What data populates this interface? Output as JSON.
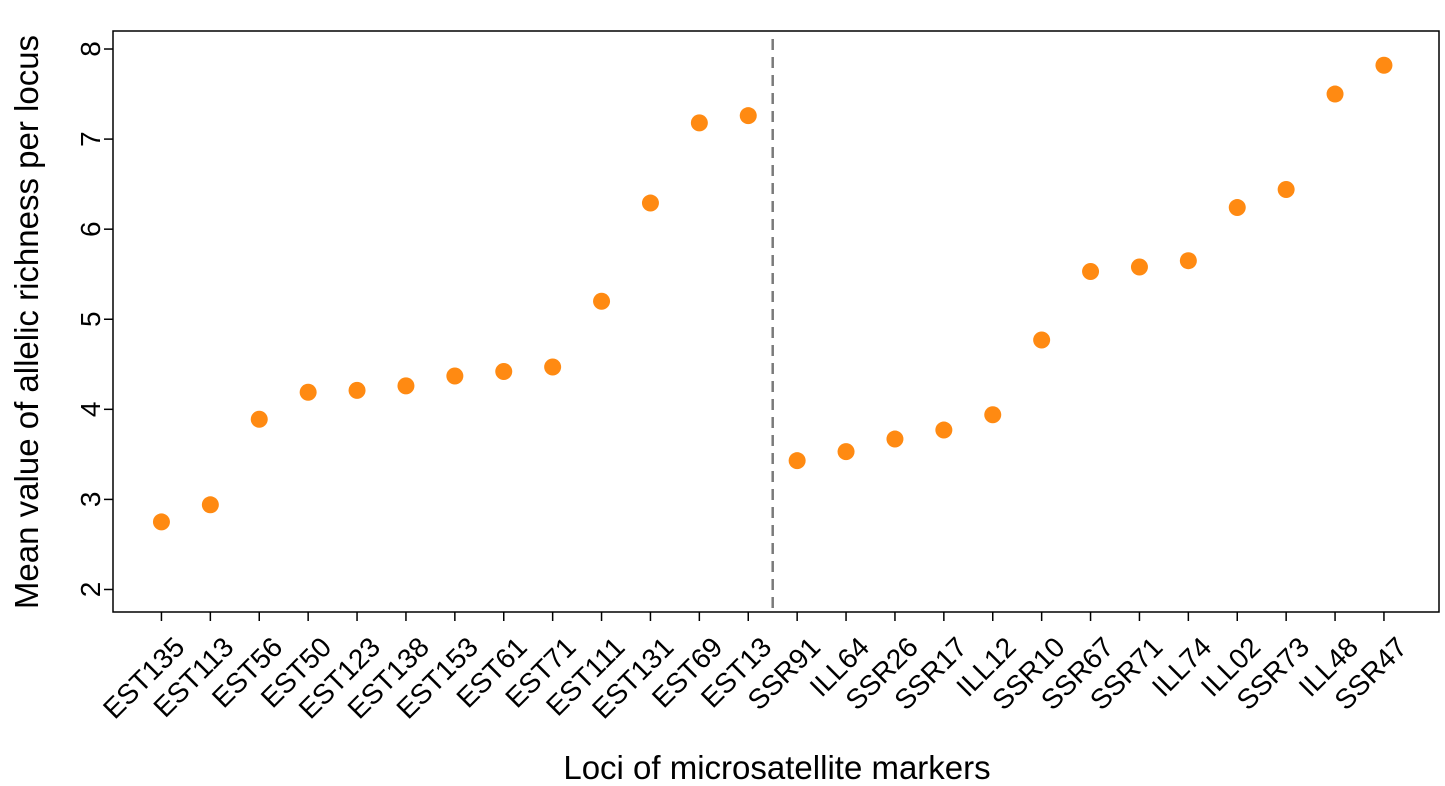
{
  "chart_data": {
    "type": "scatter",
    "xlabel": "Loci of microsatellite markers",
    "ylabel": "Mean value of allelic richness per locus",
    "categories": [
      "EST135",
      "EST113",
      "EST56",
      "EST50",
      "EST123",
      "EST138",
      "EST153",
      "EST61",
      "EST71",
      "EST111",
      "EST131",
      "EST69",
      "EST13",
      "SSR91",
      "ILL64",
      "SSR26",
      "SSR17",
      "ILL12",
      "SSR10",
      "SSR67",
      "SSR71",
      "ILL74",
      "ILL02",
      "SSR73",
      "ILL48",
      "SSR47"
    ],
    "values": [
      2.75,
      2.94,
      3.89,
      4.19,
      4.21,
      4.26,
      4.37,
      4.42,
      4.47,
      5.2,
      6.29,
      7.18,
      7.26,
      3.43,
      3.53,
      3.67,
      3.77,
      3.94,
      4.77,
      5.53,
      5.58,
      5.65,
      6.24,
      6.44,
      7.5,
      7.82
    ],
    "ylim": [
      1.75,
      8.2
    ],
    "yticks": [
      2,
      3,
      4,
      5,
      6,
      7,
      8
    ],
    "divider_after_index": 12,
    "grid": false,
    "colors": {
      "point": "#ff8a12",
      "divider": "#7a7a7a",
      "axis": "#000000"
    }
  }
}
